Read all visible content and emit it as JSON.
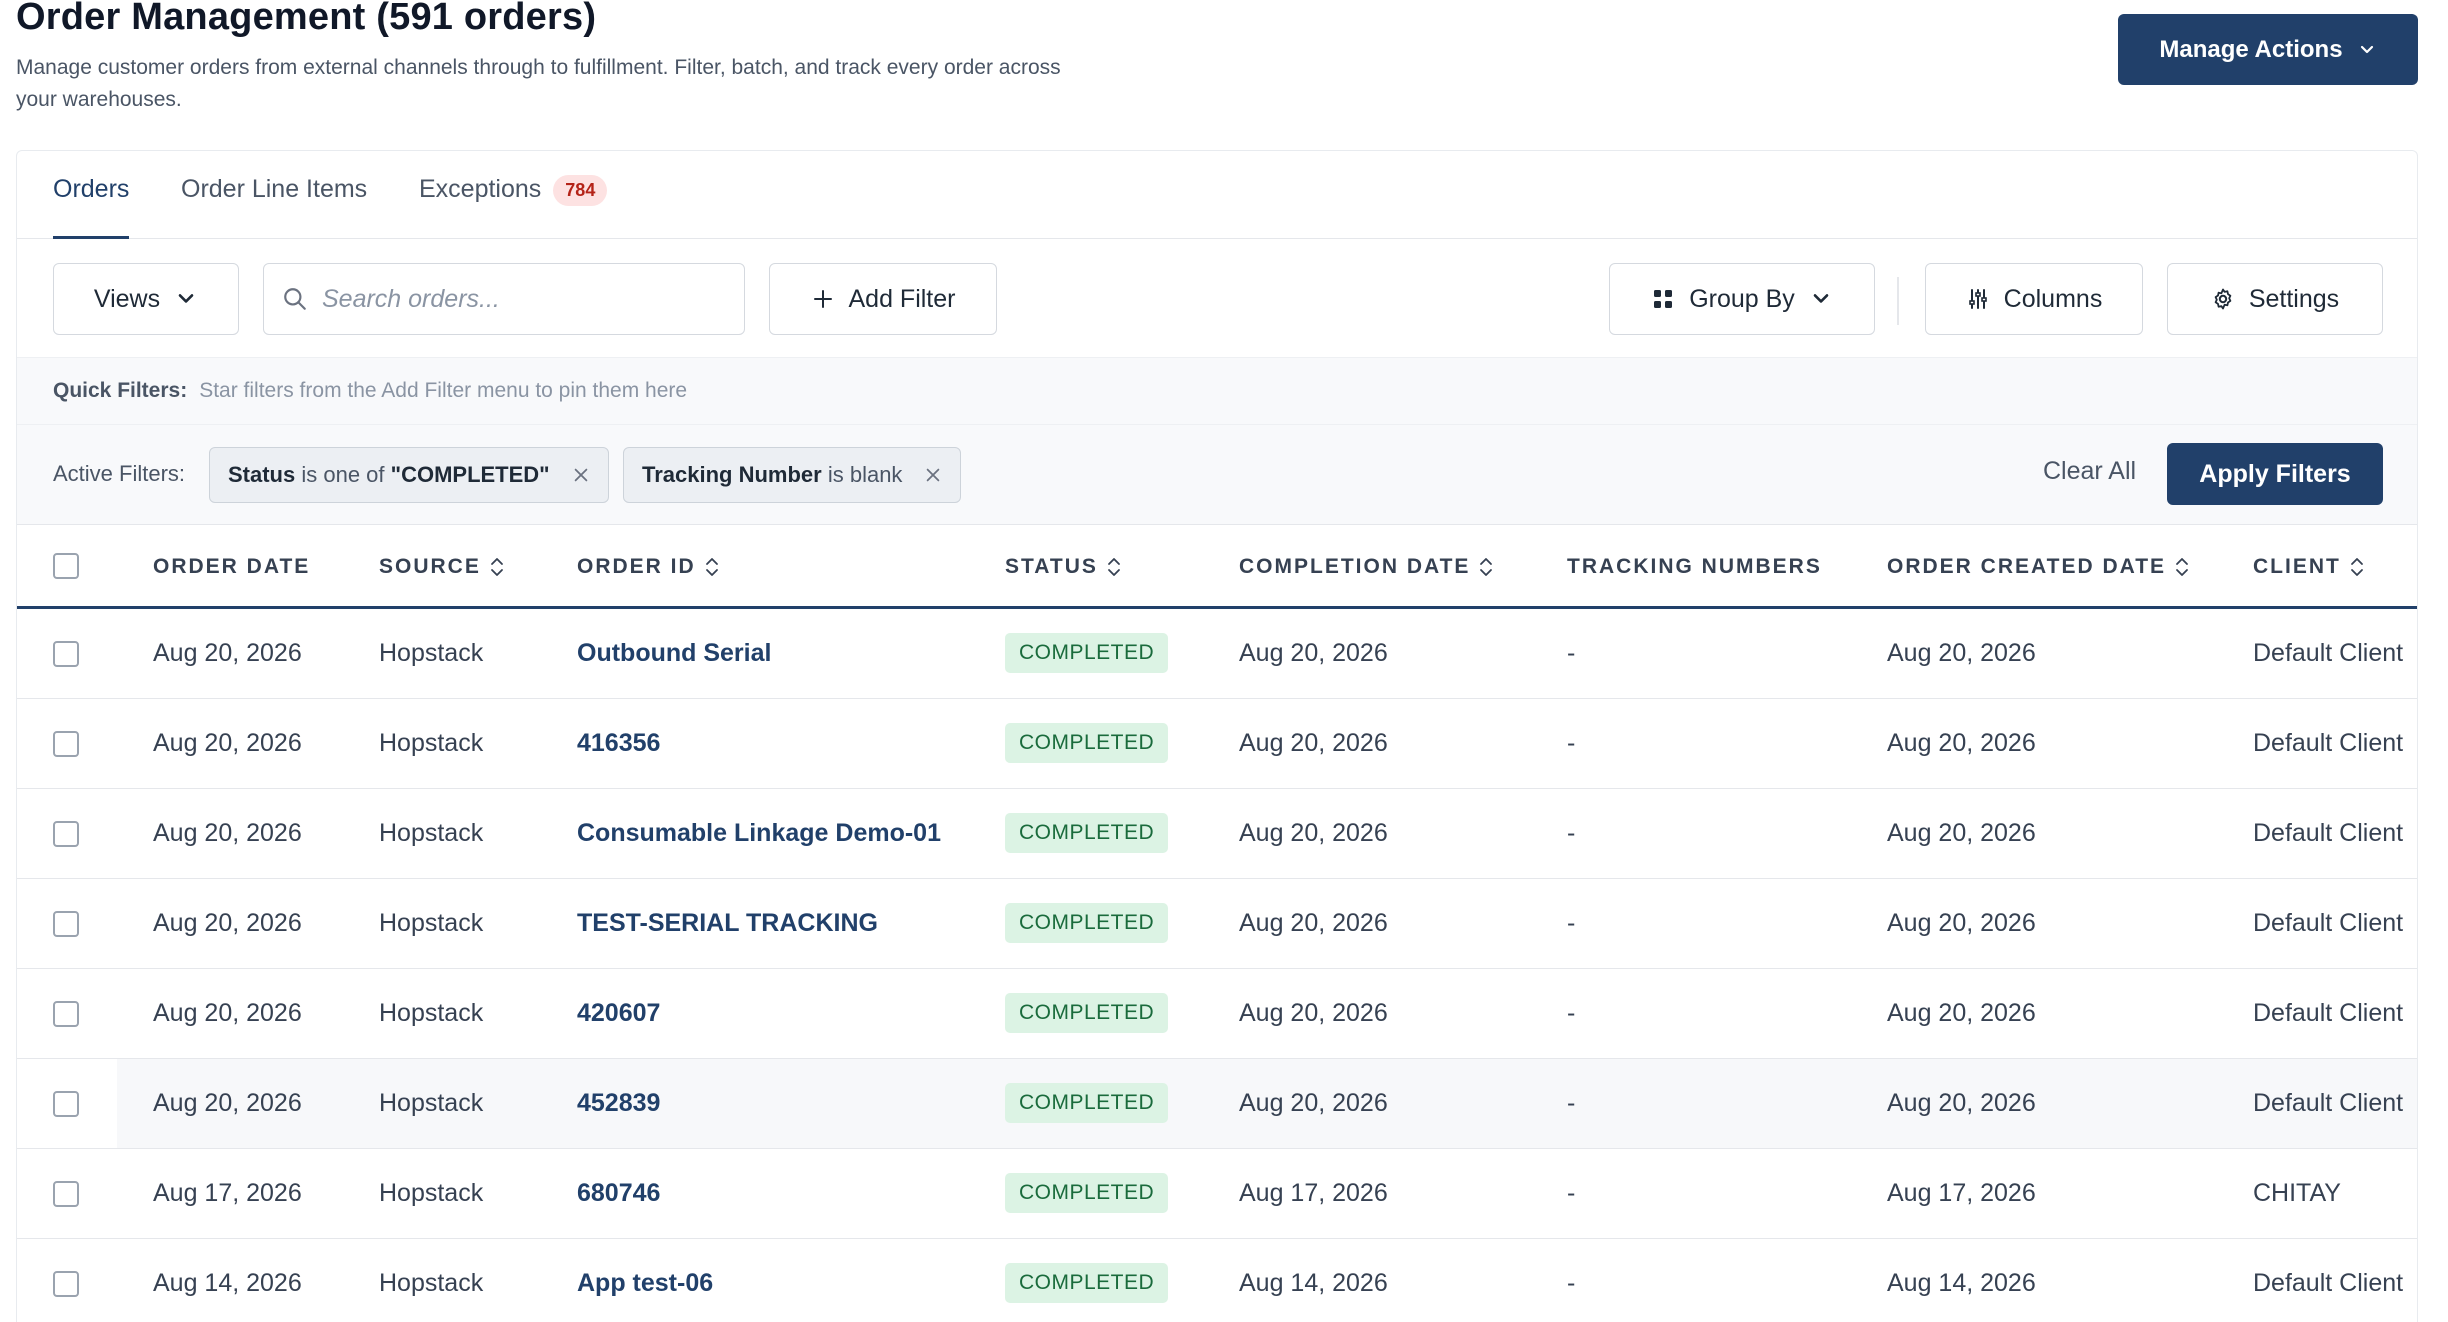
{
  "header": {
    "title": "Order Management (591 orders)",
    "description": "Manage customer orders from external channels through to fulfillment. Filter, batch, and track every order across your warehouses.",
    "manage_actions_label": "Manage Actions"
  },
  "tabs": [
    {
      "label": "Orders",
      "active": true
    },
    {
      "label": "Order Line Items",
      "active": false
    },
    {
      "label": "Exceptions",
      "active": false,
      "badge": "784"
    }
  ],
  "toolbar": {
    "views_label": "Views",
    "search_placeholder": "Search orders...",
    "add_filter_label": "Add Filter",
    "group_by_label": "Group By",
    "columns_label": "Columns",
    "settings_label": "Settings"
  },
  "quick_filters": {
    "label": "Quick Filters:",
    "hint": "Star filters from the Add Filter menu to pin them here"
  },
  "active_filters": {
    "label": "Active Filters:",
    "chips": [
      {
        "field": "Status",
        "op": " is one of ",
        "value": "\"COMPLETED\""
      },
      {
        "field": "Tracking Number",
        "op": " is blank",
        "value": ""
      }
    ],
    "clear_all_label": "Clear All",
    "apply_label": "Apply Filters"
  },
  "table": {
    "columns": [
      "ORDER DATE",
      "SOURCE",
      "ORDER ID",
      "STATUS",
      "COMPLETION DATE",
      "TRACKING NUMBERS",
      "ORDER CREATED DATE",
      "CLIENT"
    ],
    "rows": [
      {
        "order_date": "Aug 20, 2026",
        "source": "Hopstack",
        "order_id": "Outbound Serial",
        "status": "COMPLETED",
        "completion_date": "Aug 20, 2026",
        "tracking": "-",
        "created": "Aug 20, 2026",
        "client": "Default Client"
      },
      {
        "order_date": "Aug 20, 2026",
        "source": "Hopstack",
        "order_id": "416356",
        "status": "COMPLETED",
        "completion_date": "Aug 20, 2026",
        "tracking": "-",
        "created": "Aug 20, 2026",
        "client": "Default Client"
      },
      {
        "order_date": "Aug 20, 2026",
        "source": "Hopstack",
        "order_id": "Consumable Linkage Demo-01",
        "status": "COMPLETED",
        "completion_date": "Aug 20, 2026",
        "tracking": "-",
        "created": "Aug 20, 2026",
        "client": "Default Client"
      },
      {
        "order_date": "Aug 20, 2026",
        "source": "Hopstack",
        "order_id": "TEST-SERIAL TRACKING",
        "status": "COMPLETED",
        "completion_date": "Aug 20, 2026",
        "tracking": "-",
        "created": "Aug 20, 2026",
        "client": "Default Client"
      },
      {
        "order_date": "Aug 20, 2026",
        "source": "Hopstack",
        "order_id": "420607",
        "status": "COMPLETED",
        "completion_date": "Aug 20, 2026",
        "tracking": "-",
        "created": "Aug 20, 2026",
        "client": "Default Client"
      },
      {
        "order_date": "Aug 20, 2026",
        "source": "Hopstack",
        "order_id": "452839",
        "status": "COMPLETED",
        "completion_date": "Aug 20, 2026",
        "tracking": "-",
        "created": "Aug 20, 2026",
        "client": "Default Client"
      },
      {
        "order_date": "Aug 17, 2026",
        "source": "Hopstack",
        "order_id": "680746",
        "status": "COMPLETED",
        "completion_date": "Aug 17, 2026",
        "tracking": "-",
        "created": "Aug 17, 2026",
        "client": "CHITAY"
      },
      {
        "order_date": "Aug 14, 2026",
        "source": "Hopstack",
        "order_id": "App test-06",
        "status": "COMPLETED",
        "completion_date": "Aug 14, 2026",
        "tracking": "-",
        "created": "Aug 14, 2026",
        "client": "Default Client"
      }
    ]
  },
  "colors": {
    "primary": "#21406a",
    "status_bg": "#dcf3e4",
    "status_text": "#1a6b3c",
    "badge_bg": "#fde2e2",
    "badge_text": "#b42318"
  }
}
